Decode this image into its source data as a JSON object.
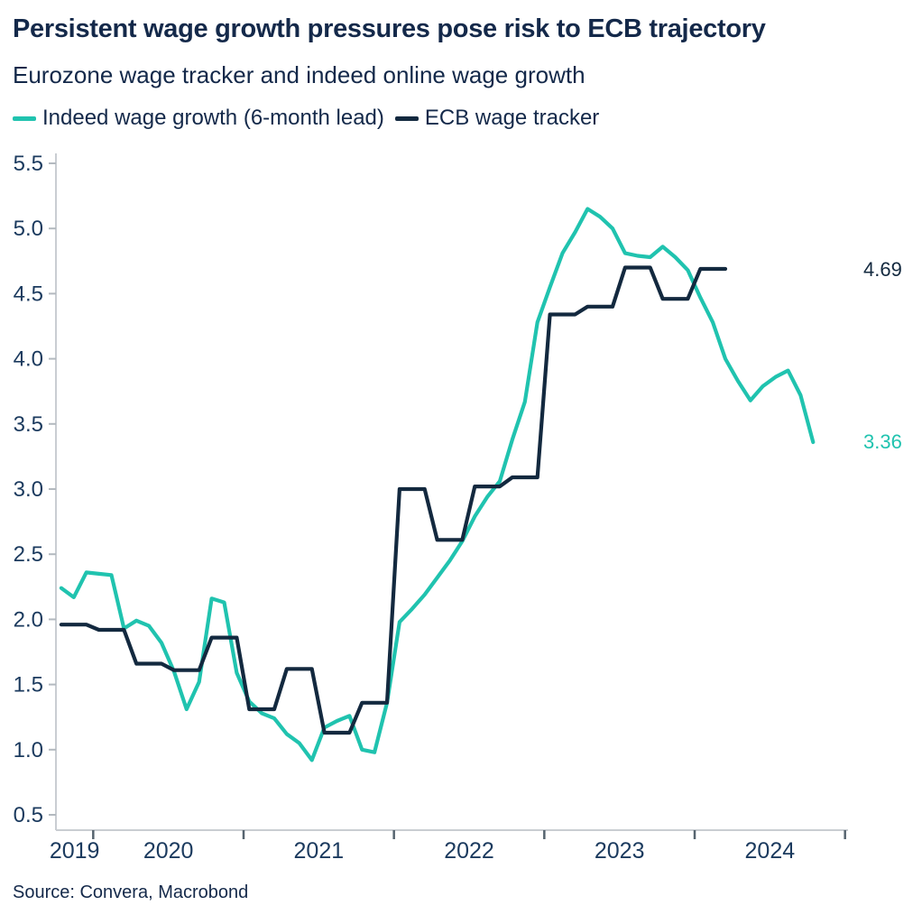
{
  "header": {
    "title": "Persistent wage growth pressures pose risk to ECB trajectory",
    "subtitle": "Eurozone wage tracker and indeed online wage growth"
  },
  "legend": [
    {
      "label": "Indeed wage growth (6-month lead)",
      "color": "#20c3af"
    },
    {
      "label": "ECB wage tracker",
      "color": "#13293f"
    }
  ],
  "source": "Source: Convera, Macrobond",
  "chart_data": {
    "type": "line",
    "title": "Persistent wage growth pressures pose risk to ECB trajectory",
    "subtitle": "Eurozone wage tracker and indeed online wage growth",
    "legend_position": "top",
    "grid": false,
    "background": "#ffffff",
    "y_axis": {
      "min": 0.5,
      "max": 5.5,
      "ticks": [
        5.5,
        5.0,
        4.5,
        4.0,
        3.5,
        3.0,
        2.5,
        2.0,
        1.5,
        1.0,
        0.5
      ],
      "tick_labels": [
        "5.5",
        "5.0",
        "4.5",
        "4.0",
        "3.5",
        "3.0",
        "2.5",
        "2.0",
        "1.5",
        "1.0",
        "0.5"
      ]
    },
    "x_axis": {
      "tick_years": [
        2020,
        2021,
        2022,
        2023,
        2024,
        2025
      ],
      "labels": [
        "2019",
        "2020",
        "2021",
        "2022",
        "2023",
        "2024"
      ]
    },
    "series": [
      {
        "name": "Indeed wage growth (6-month lead)",
        "color": "#20c3af",
        "start": "2019-10",
        "frequency": "monthly",
        "end_label": "3.36",
        "values": [
          2.24,
          2.17,
          2.36,
          2.35,
          2.34,
          1.93,
          1.99,
          1.95,
          1.82,
          1.6,
          1.31,
          1.52,
          2.16,
          2.13,
          1.59,
          1.37,
          1.28,
          1.24,
          1.12,
          1.05,
          0.92,
          1.17,
          1.22,
          1.26,
          1.0,
          0.98,
          1.36,
          1.98,
          2.08,
          2.19,
          2.32,
          2.45,
          2.6,
          2.79,
          2.94,
          3.06,
          3.38,
          3.67,
          4.28,
          4.55,
          4.81,
          4.97,
          5.15,
          5.09,
          5.0,
          4.81,
          4.79,
          4.78,
          4.86,
          4.78,
          4.68,
          4.47,
          4.28,
          4.0,
          3.83,
          3.68,
          3.79,
          3.86,
          3.91,
          3.72,
          3.36
        ]
      },
      {
        "name": "ECB wage tracker",
        "color": "#13293f",
        "start": "2019-10",
        "frequency": "monthly",
        "end_label": "4.69",
        "values": [
          1.96,
          1.96,
          1.96,
          1.92,
          1.92,
          1.92,
          1.66,
          1.66,
          1.66,
          1.61,
          1.61,
          1.61,
          1.86,
          1.86,
          1.86,
          1.31,
          1.31,
          1.31,
          1.62,
          1.62,
          1.62,
          1.13,
          1.13,
          1.13,
          1.36,
          1.36,
          1.36,
          3.0,
          3.0,
          3.0,
          2.61,
          2.61,
          2.61,
          3.02,
          3.02,
          3.02,
          3.09,
          3.09,
          3.09,
          4.34,
          4.34,
          4.34,
          4.4,
          4.4,
          4.4,
          4.7,
          4.7,
          4.7,
          4.46,
          4.46,
          4.46,
          4.69,
          4.69,
          4.69
        ]
      }
    ]
  }
}
